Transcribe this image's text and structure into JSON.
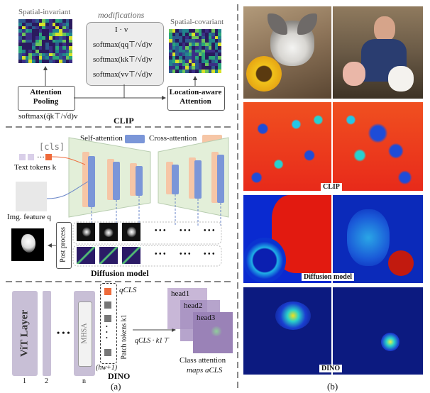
{
  "panel_a": {
    "clip": {
      "spatial_invariant": "Spatial-invariant",
      "spatial_covariant": "Spatial-covariant",
      "modifications": "modifications",
      "mods": [
        "I · v",
        "softmax(qq⊤/√d)v",
        "softmax(kk⊤/√d)v",
        "softmax(vv⊤/√d)v"
      ],
      "attention_pooling": "Attention Pooling",
      "location_aware": "Location-aware Attention",
      "formula": "softmax(q̄k⊤/√d)v",
      "title": "CLIP"
    },
    "diffusion": {
      "self_attention": "Self-attention",
      "cross_attention": "Cross-attention",
      "cls_token": "[cls]",
      "text_tokens": "Text tokens k",
      "img_feature": "Img. feature q",
      "post_process": "Post process",
      "ellipsis": "• • •",
      "title": "Diffusion model"
    },
    "dino": {
      "vit_layer": "ViT Layer",
      "layer_nums": [
        "1",
        "2",
        "n"
      ],
      "mhsa": "MHSA",
      "q_cls": "qCLS",
      "patch_tokens": "Patch tokens k1",
      "hw1": "(hw+1)",
      "dots": "• • •",
      "heads": [
        "head1",
        "head2",
        "head3"
      ],
      "formula": "qCLS · k1⊤",
      "class_attention": "Class attention",
      "maps": "maps aCLS",
      "title": "DINO"
    },
    "caption": "(a)"
  },
  "panel_b": {
    "clip_label": "CLIP",
    "diffusion_label": "Diffusion model",
    "dino_label": "DINO",
    "caption": "(b)"
  },
  "colors": {
    "divider": "#888888",
    "blue_bar": "#7b96d8",
    "peach_bar": "#f6c6a6",
    "unet_fill": "#e3efd9",
    "vit_fill": "#c8bfd6",
    "cls_orange": "#ee6a3a"
  }
}
